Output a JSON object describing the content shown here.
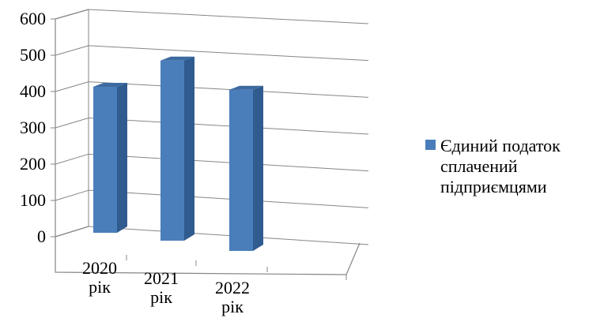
{
  "chart_data": {
    "type": "bar",
    "categories": [
      "2020 рік",
      "2021 рік",
      "2022 рік"
    ],
    "category_lines": [
      [
        "2020",
        "рік"
      ],
      [
        "2021",
        "рік"
      ],
      [
        "2022",
        "рік"
      ]
    ],
    "series": [
      {
        "name": "Єдиний податок сплачений підприємцями",
        "values": [
          405,
          490,
          430
        ]
      }
    ],
    "y_ticks": [
      0,
      100,
      200,
      300,
      400,
      500,
      600
    ],
    "ylim": [
      0,
      600
    ],
    "grid": true,
    "legend_position": "right",
    "legend_lines": [
      "Єдиний податок",
      "сплачений",
      "підприємцями"
    ],
    "colors": {
      "bar_front": "#4A7EBB",
      "bar_side": "#2F5B8F",
      "bar_top": "#3D6AA0",
      "grid": "#868686"
    }
  }
}
